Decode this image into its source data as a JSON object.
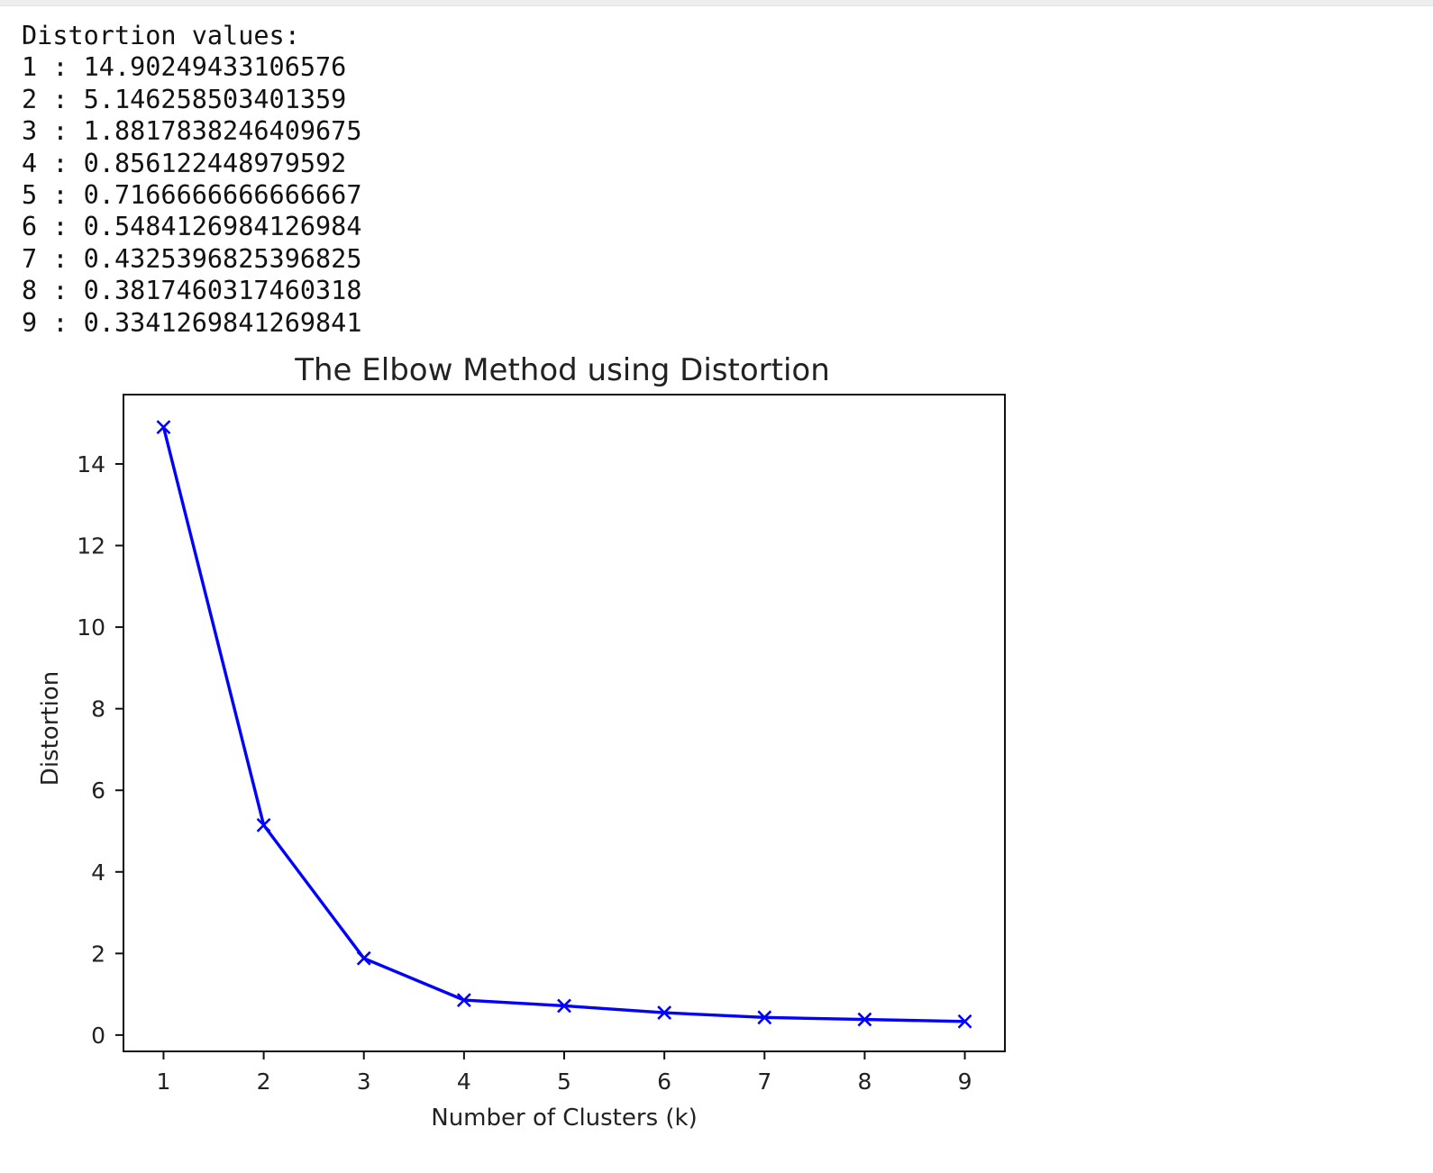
{
  "output": {
    "heading": "Distortion values:",
    "lines": [
      "1 : 14.90249433106576",
      "2 : 5.146258503401359",
      "3 : 1.8817838246409675",
      "4 : 0.856122448979592",
      "5 : 0.7166666666666667",
      "6 : 0.5484126984126984",
      "7 : 0.4325396825396825",
      "8 : 0.3817460317460318",
      "9 : 0.3341269841269841"
    ]
  },
  "chart_data": {
    "type": "line",
    "title": "The Elbow Method using Distortion",
    "xlabel": "Number of Clusters (k)",
    "ylabel": "Distortion",
    "x": [
      1,
      2,
      3,
      4,
      5,
      6,
      7,
      8,
      9
    ],
    "series": [
      {
        "values": [
          14.90249433106576,
          5.146258503401359,
          1.8817838246409675,
          0.856122448979592,
          0.7166666666666667,
          0.5484126984126984,
          0.4325396825396825,
          0.3817460317460318,
          0.3341269841269841
        ],
        "color": "#0000ff",
        "marker": "x"
      }
    ],
    "xticks": [
      1,
      2,
      3,
      4,
      5,
      6,
      7,
      8,
      9
    ],
    "yticks": [
      0,
      2,
      4,
      6,
      8,
      10,
      12,
      14
    ],
    "xlim": [
      0.6,
      9.4
    ],
    "ylim": [
      -0.4,
      15.7
    ],
    "grid": false,
    "legend": "none"
  }
}
